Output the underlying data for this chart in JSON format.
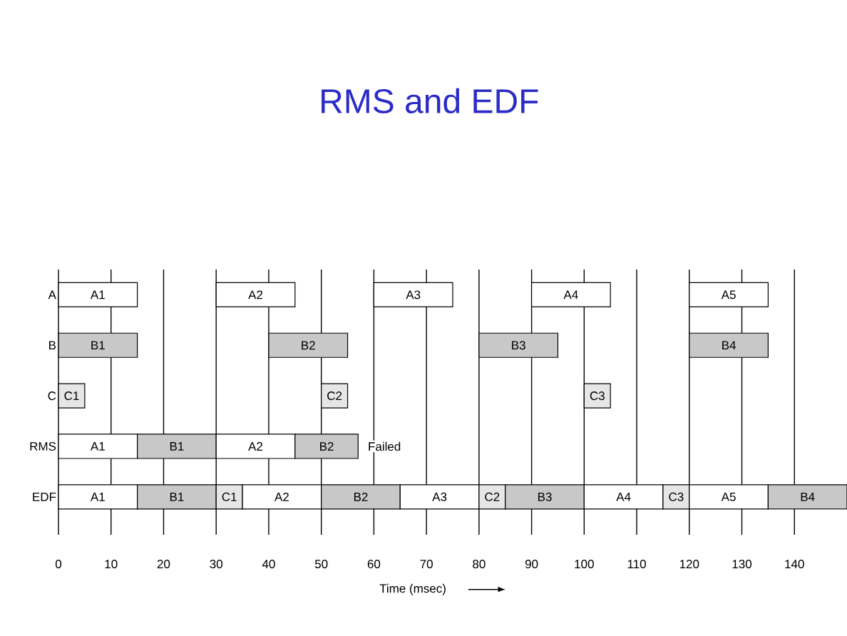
{
  "chart_data": {
    "type": "bar",
    "orientation": "horizontal",
    "title": "RMS and EDF",
    "xlabel": "Time (msec)",
    "categories": [
      "A",
      "B",
      "C",
      "RMS",
      "EDF"
    ],
    "xlim": [
      0,
      150
    ],
    "xticks": [
      0,
      10,
      20,
      30,
      40,
      50,
      60,
      70,
      80,
      90,
      100,
      110,
      120,
      130,
      140
    ],
    "grid": "x",
    "annotations": [
      {
        "text": "Failed",
        "x": 62,
        "y": "RMS"
      }
    ],
    "series": [
      {
        "base": [
          0,
          0,
          0,
          0,
          0
        ],
        "values": [
          15,
          15,
          5,
          15,
          15
        ],
        "value_labels": [
          "A1",
          "B1",
          "C1",
          "A1",
          "A1"
        ],
        "colors": [
          "#ffffff",
          "#c8c8c8",
          "#e6e6e6",
          "#ffffff",
          "#ffffff"
        ]
      },
      {
        "base": [
          30,
          40,
          50,
          15,
          15
        ],
        "values": [
          15,
          15,
          5,
          15,
          15
        ],
        "value_labels": [
          "A2",
          "B2",
          "C2",
          "B1",
          "B1"
        ],
        "colors": [
          "#ffffff",
          "#c8c8c8",
          "#e6e6e6",
          "#c8c8c8",
          "#c8c8c8"
        ]
      },
      {
        "base": [
          60,
          80,
          100,
          30,
          30
        ],
        "values": [
          15,
          15,
          5,
          15,
          5
        ],
        "value_labels": [
          "A3",
          "B3",
          "C3",
          "A2",
          "C1"
        ],
        "colors": [
          "#ffffff",
          "#c8c8c8",
          "#e6e6e6",
          "#ffffff",
          "#e6e6e6"
        ]
      },
      {
        "base": [
          90,
          120,
          null,
          45,
          35
        ],
        "values": [
          15,
          15,
          null,
          12,
          15
        ],
        "value_labels": [
          "A4",
          "B4",
          null,
          "B2",
          "A2"
        ],
        "colors": [
          "#ffffff",
          "#c8c8c8",
          null,
          "#c8c8c8",
          "#ffffff"
        ]
      },
      {
        "base": [
          120,
          null,
          null,
          null,
          50
        ],
        "values": [
          15,
          null,
          null,
          null,
          15
        ],
        "value_labels": [
          "A5",
          null,
          null,
          null,
          "B2"
        ],
        "colors": [
          "#ffffff",
          null,
          null,
          null,
          "#c8c8c8"
        ]
      },
      {
        "base": [
          null,
          null,
          null,
          null,
          65
        ],
        "values": [
          null,
          null,
          null,
          null,
          15
        ],
        "value_labels": [
          null,
          null,
          null,
          null,
          "A3"
        ],
        "colors": [
          null,
          null,
          null,
          null,
          "#ffffff"
        ]
      },
      {
        "base": [
          null,
          null,
          null,
          null,
          80
        ],
        "values": [
          null,
          null,
          null,
          null,
          5
        ],
        "value_labels": [
          null,
          null,
          null,
          null,
          "C2"
        ],
        "colors": [
          null,
          null,
          null,
          null,
          "#e6e6e6"
        ]
      },
      {
        "base": [
          null,
          null,
          null,
          null,
          85
        ],
        "values": [
          null,
          null,
          null,
          null,
          15
        ],
        "value_labels": [
          null,
          null,
          null,
          null,
          "B3"
        ],
        "colors": [
          null,
          null,
          null,
          null,
          "#c8c8c8"
        ]
      },
      {
        "base": [
          null,
          null,
          null,
          null,
          100
        ],
        "values": [
          null,
          null,
          null,
          null,
          15
        ],
        "value_labels": [
          null,
          null,
          null,
          null,
          "A4"
        ],
        "colors": [
          null,
          null,
          null,
          null,
          "#ffffff"
        ]
      },
      {
        "base": [
          null,
          null,
          null,
          null,
          115
        ],
        "values": [
          null,
          null,
          null,
          null,
          5
        ],
        "value_labels": [
          null,
          null,
          null,
          null,
          "C3"
        ],
        "colors": [
          null,
          null,
          null,
          null,
          "#e6e6e6"
        ]
      },
      {
        "base": [
          null,
          null,
          null,
          null,
          120
        ],
        "values": [
          null,
          null,
          null,
          null,
          15
        ],
        "value_labels": [
          null,
          null,
          null,
          null,
          "A5"
        ],
        "colors": [
          null,
          null,
          null,
          null,
          "#ffffff"
        ]
      },
      {
        "base": [
          null,
          null,
          null,
          null,
          135
        ],
        "values": [
          null,
          null,
          null,
          null,
          15
        ],
        "value_labels": [
          null,
          null,
          null,
          null,
          "B4"
        ],
        "colors": [
          null,
          null,
          null,
          null,
          "#c8c8c8"
        ]
      }
    ]
  }
}
